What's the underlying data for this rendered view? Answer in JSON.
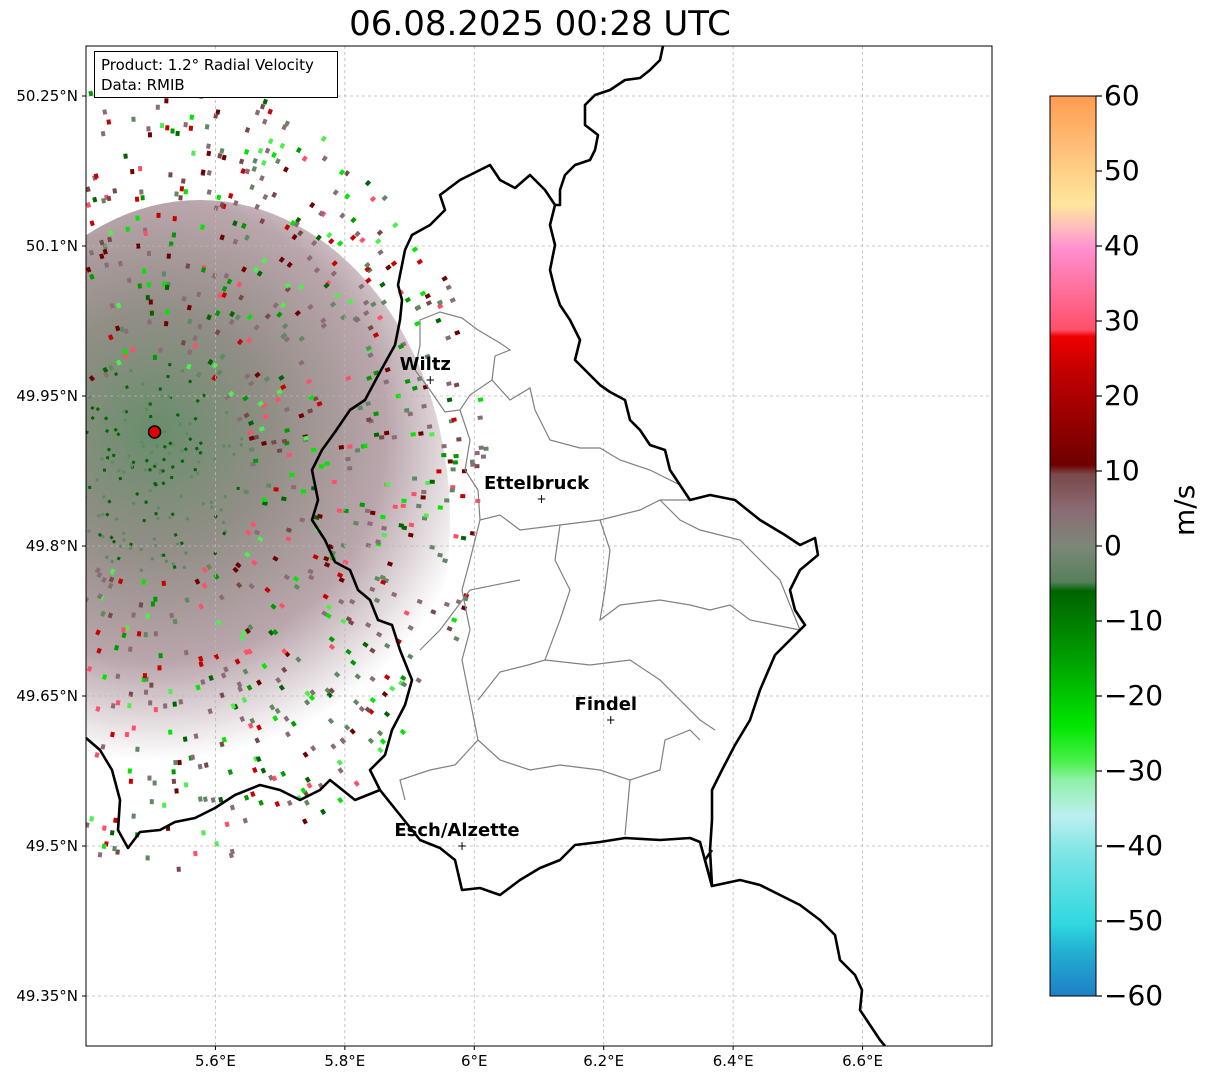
{
  "title": "06.08.2025 00:28 UTC",
  "info_box": {
    "product": "Product: 1.2° Radial Velocity",
    "data": "Data: RMIB"
  },
  "map": {
    "lon_range": [
      5.4,
      6.8
    ],
    "lat_range": [
      49.3,
      50.3
    ],
    "lat_ticks": [
      "50.25°N",
      "50.1°N",
      "49.95°N",
      "49.8°N",
      "49.65°N",
      "49.5°N",
      "49.35°N"
    ],
    "lon_ticks": [
      "5.6°E",
      "5.8°E",
      "6°E",
      "6.2°E",
      "6.4°E",
      "6.6°E"
    ],
    "grid": true,
    "radar_site": {
      "lon": 5.506,
      "lat": 49.914
    },
    "cities": [
      {
        "name": "Wiltz",
        "lon": 5.932,
        "lat": 49.966
      },
      {
        "name": "Ettelbruck",
        "lon": 6.104,
        "lat": 49.847
      },
      {
        "name": "Findel",
        "lon": 6.211,
        "lat": 49.626
      },
      {
        "name": "Esch/Alzette",
        "lon": 5.981,
        "lat": 49.5
      }
    ]
  },
  "colorbar": {
    "label": "m/s",
    "min": -60,
    "max": 60,
    "ticks": [
      "60",
      "50",
      "40",
      "30",
      "20",
      "10",
      "0",
      "−10",
      "−20",
      "−30",
      "−40",
      "−50",
      "−60"
    ],
    "colors": {
      "neg_cyan_blue": "#1f7fc6",
      "neg_cyan": "#2fd8df",
      "neg_light_cyan": "#bdeff0",
      "neg_green_bright": "#00e600",
      "neg_green_dark": "#006400",
      "zero_grey_green": "#5f8863",
      "zero_grey_mauve": "#8b6b75",
      "pos_dark_red": "#6e0000",
      "pos_red": "#f00000",
      "pos_pink": "#ff8fd0",
      "pos_peach": "#ffdfa8",
      "pos_orange": "#ff9c50"
    }
  }
}
